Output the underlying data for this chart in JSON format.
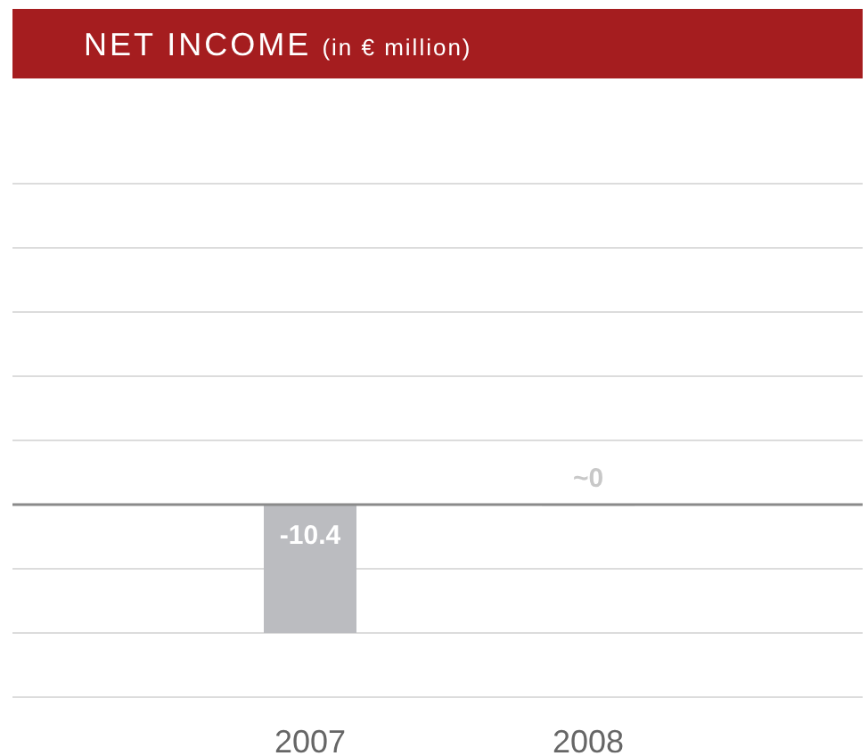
{
  "chart_data": {
    "type": "bar",
    "title": "NET INCOME",
    "subtitle": "(in € million)",
    "categories": [
      "2007",
      "2008"
    ],
    "values": [
      -10.4,
      0
    ],
    "colors": [
      "#bbbcc0",
      "#f2f2f2"
    ],
    "value_labels": [
      "-10.4",
      "~0"
    ],
    "ylim": [
      -15.6,
      26
    ],
    "yticks": [
      {
        "value": -15.6,
        "label": null
      },
      {
        "value": -10.4,
        "label": null
      },
      {
        "value": -5.2,
        "label": null
      },
      {
        "value": 0,
        "label": null
      },
      {
        "value": 5.2,
        "label": null
      },
      {
        "value": 10.4,
        "label": null
      },
      {
        "value": 15.6,
        "label": null
      },
      {
        "value": 20.8,
        "label": null
      },
      {
        "value": 26,
        "label": null
      }
    ],
    "grid": "y",
    "tick_labels": "x"
  }
}
